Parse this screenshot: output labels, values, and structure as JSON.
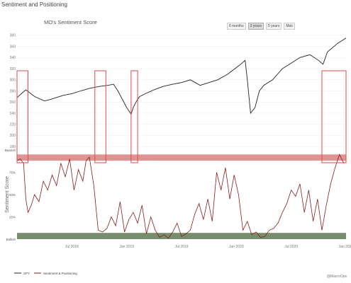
{
  "page": {
    "section_title": "Sentiment and Positioning",
    "chart_title": "MO's Sentiment Score",
    "credit": "@MacroOps"
  },
  "range_selector": {
    "buttons": [
      "6 months",
      "3 years",
      "5 years",
      "Max"
    ],
    "active": "3 years"
  },
  "colors": {
    "price": "#222222",
    "sentiment": "#8b1a1a",
    "bearish_band": "#d98080",
    "bullish_band": "#5f7a52",
    "highlight_box": "#e04848"
  },
  "chart_data": {
    "type": "line",
    "title": "MO's Sentiment Score",
    "x_ticks": [
      "Jul 2018",
      "Jan 2019",
      "Jul 2019",
      "Jan 2020",
      "Jul 2020",
      "Jan 2021"
    ],
    "x_range": [
      "Jan 2018",
      "Jan 2021"
    ],
    "upper_panel": {
      "series_name": "SPY",
      "y_ticks": [
        180,
        200,
        220,
        240,
        260,
        280,
        300,
        320,
        340,
        360,
        380
      ],
      "ylim": [
        170,
        390
      ],
      "x": [
        0,
        0.08,
        0.16,
        0.25,
        0.31,
        0.42,
        0.5,
        0.58,
        0.67,
        0.75,
        0.83,
        0.88,
        0.92,
        0.96,
        1.0,
        1.04,
        1.06,
        1.08,
        1.1,
        1.12,
        1.17,
        1.25,
        1.33,
        1.42,
        1.5,
        1.58,
        1.67,
        1.75,
        1.83,
        1.92,
        2.0,
        2.04,
        2.08,
        2.1,
        2.13,
        2.17,
        2.21,
        2.25,
        2.33,
        2.42,
        2.5,
        2.58,
        2.67,
        2.75,
        2.79,
        2.83,
        2.92,
        3.0
      ],
      "values": [
        268,
        282,
        270,
        262,
        265,
        272,
        275,
        280,
        285,
        288,
        290,
        292,
        280,
        265,
        250,
        238,
        250,
        258,
        265,
        270,
        275,
        282,
        288,
        292,
        295,
        300,
        290,
        295,
        300,
        310,
        322,
        328,
        335,
        300,
        240,
        250,
        280,
        290,
        300,
        320,
        330,
        340,
        345,
        335,
        328,
        350,
        365,
        375
      ]
    },
    "lower_panel": {
      "series_name": "Sentiment & Positioning",
      "ylabel": "Sentiment Score",
      "y_ticks": [
        "Bullish",
        "25%",
        "50%",
        "75%",
        "Bearish"
      ],
      "ylim": [
        0,
        100
      ],
      "bands": [
        {
          "name": "Bearish",
          "from": 88,
          "to": 95
        },
        {
          "name": "Bullish",
          "from": 0,
          "to": 7
        }
      ],
      "x": [
        0,
        0.03,
        0.06,
        0.08,
        0.1,
        0.13,
        0.16,
        0.2,
        0.24,
        0.28,
        0.32,
        0.36,
        0.4,
        0.44,
        0.48,
        0.52,
        0.56,
        0.6,
        0.63,
        0.66,
        0.7,
        0.74,
        0.78,
        0.82,
        0.86,
        0.9,
        0.94,
        0.98,
        1.02,
        1.06,
        1.1,
        1.14,
        1.18,
        1.22,
        1.26,
        1.3,
        1.34,
        1.38,
        1.42,
        1.46,
        1.5,
        1.54,
        1.58,
        1.62,
        1.66,
        1.7,
        1.74,
        1.78,
        1.82,
        1.86,
        1.9,
        1.94,
        1.98,
        2.02,
        2.06,
        2.1,
        2.14,
        2.18,
        2.22,
        2.26,
        2.3,
        2.34,
        2.38,
        2.42,
        2.46,
        2.5,
        2.54,
        2.58,
        2.62,
        2.66,
        2.7,
        2.74,
        2.78,
        2.82,
        2.86,
        2.9,
        2.94,
        2.98
      ],
      "values": [
        88,
        90,
        85,
        45,
        30,
        38,
        50,
        42,
        65,
        55,
        72,
        60,
        85,
        70,
        90,
        55,
        78,
        65,
        88,
        92,
        60,
        10,
        8,
        12,
        25,
        15,
        42,
        8,
        22,
        30,
        18,
        38,
        6,
        25,
        10,
        2,
        5,
        1,
        8,
        18,
        3,
        6,
        10,
        28,
        40,
        22,
        45,
        20,
        75,
        55,
        80,
        45,
        72,
        50,
        10,
        20,
        5,
        8,
        2,
        3,
        10,
        12,
        18,
        30,
        40,
        55,
        48,
        62,
        30,
        55,
        20,
        45,
        10,
        38,
        62,
        80,
        95,
        85
      ]
    },
    "highlight_boxes_x": [
      [
        0.0,
        0.1
      ],
      [
        0.71,
        0.81
      ],
      [
        1.04,
        1.1
      ],
      [
        2.78,
        3.0
      ]
    ],
    "legend": [
      "SPY",
      "Sentiment & Positioning"
    ]
  }
}
